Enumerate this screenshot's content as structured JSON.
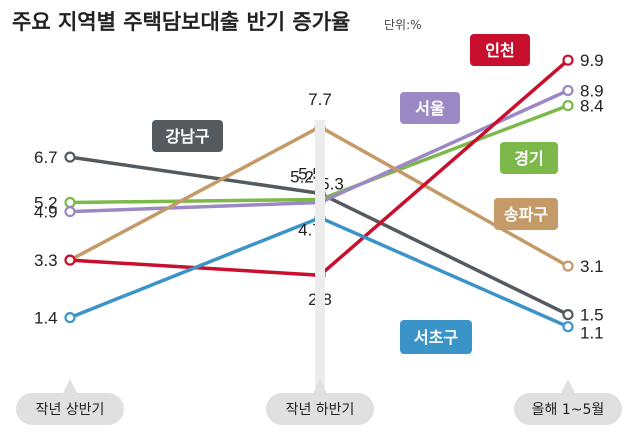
{
  "title": "주요 지역별 주택담보대출 반기 증가율",
  "unit": "단위:%",
  "chart_data": {
    "type": "line",
    "categories": [
      "작년 상반기",
      "작년 하반기",
      "올해 1~5월"
    ],
    "ylim": [
      0,
      10.5
    ],
    "grid": false,
    "series": [
      {
        "name": "강남구",
        "values": [
          6.7,
          5.5,
          1.5
        ],
        "color": "#555a5f"
      },
      {
        "name": "경기",
        "values": [
          5.2,
          5.3,
          8.4
        ],
        "color": "#7cb84a"
      },
      {
        "name": "서울",
        "values": [
          4.9,
          5.2,
          8.9
        ],
        "color": "#9b88c4"
      },
      {
        "name": "송파구",
        "values": [
          3.3,
          7.7,
          3.1
        ],
        "color": "#c49a68"
      },
      {
        "name": "인천",
        "values": [
          3.3,
          2.8,
          9.9
        ],
        "color": "#c8102e"
      },
      {
        "name": "서초구",
        "values": [
          1.4,
          4.7,
          1.1
        ],
        "color": "#3a94c8"
      }
    ]
  }
}
